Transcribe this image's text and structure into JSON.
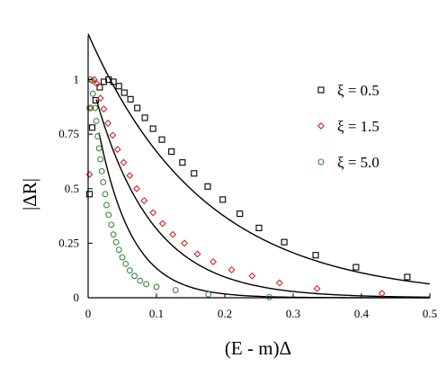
{
  "chart_data": {
    "type": "scatter",
    "title": "",
    "xlabel": "(E - m)Δ",
    "ylabel": "|ΔR|",
    "xlim": [
      0,
      0.5
    ],
    "ylim": [
      0,
      1.2
    ],
    "xticks": [
      0,
      0.1,
      0.2,
      0.3,
      0.4,
      0.5
    ],
    "xtick_labels": [
      "0",
      "0.1",
      "0.2",
      "0.3",
      "0.4",
      "0.5"
    ],
    "yticks": [
      0,
      0.25,
      0.5,
      0.75,
      1
    ],
    "ytick_labels": [
      "0",
      "0.25",
      "0.5",
      "0.75",
      "1"
    ],
    "grid": false,
    "legend_position": "top-right",
    "series": [
      {
        "name": "ξ = 0.5",
        "marker": "square",
        "color": "#000000",
        "points": [
          [
            0.002,
            0.475
          ],
          [
            0.006,
            0.78
          ],
          [
            0.011,
            0.905
          ],
          [
            0.017,
            0.965
          ],
          [
            0.023,
            0.99
          ],
          [
            0.03,
            1.0
          ],
          [
            0.037,
            0.99
          ],
          [
            0.045,
            0.97
          ],
          [
            0.053,
            0.94
          ],
          [
            0.062,
            0.91
          ],
          [
            0.072,
            0.87
          ],
          [
            0.083,
            0.825
          ],
          [
            0.095,
            0.775
          ],
          [
            0.108,
            0.725
          ],
          [
            0.122,
            0.67
          ],
          [
            0.138,
            0.62
          ],
          [
            0.155,
            0.57
          ],
          [
            0.175,
            0.51
          ],
          [
            0.197,
            0.45
          ],
          [
            0.222,
            0.385
          ],
          [
            0.25,
            0.32
          ],
          [
            0.287,
            0.255
          ],
          [
            0.333,
            0.195
          ],
          [
            0.392,
            0.14
          ],
          [
            0.467,
            0.095
          ]
        ]
      },
      {
        "name": "ξ = 1.5",
        "marker": "diamond",
        "color": "#d62728",
        "points": [
          [
            0.002,
            0.565
          ],
          [
            0.004,
            0.87
          ],
          [
            0.006,
            0.995
          ],
          [
            0.009,
            1.0
          ],
          [
            0.013,
            0.98
          ],
          [
            0.018,
            0.915
          ],
          [
            0.023,
            0.865
          ],
          [
            0.029,
            0.8
          ],
          [
            0.036,
            0.745
          ],
          [
            0.043,
            0.68
          ],
          [
            0.052,
            0.62
          ],
          [
            0.061,
            0.56
          ],
          [
            0.071,
            0.5
          ],
          [
            0.082,
            0.445
          ],
          [
            0.095,
            0.39
          ],
          [
            0.109,
            0.34
          ],
          [
            0.124,
            0.29
          ],
          [
            0.141,
            0.25
          ],
          [
            0.16,
            0.2
          ],
          [
            0.183,
            0.165
          ],
          [
            0.21,
            0.128
          ],
          [
            0.24,
            0.1
          ],
          [
            0.28,
            0.068
          ],
          [
            0.335,
            0.042
          ],
          [
            0.43,
            0.02
          ]
        ]
      },
      {
        "name": "ξ = 5.0",
        "marker": "circle",
        "color": "#3d8b3d",
        "points": [
          [
            0.002,
            0.87
          ],
          [
            0.004,
            1.0
          ],
          [
            0.007,
            0.935
          ],
          [
            0.01,
            0.87
          ],
          [
            0.012,
            0.81
          ],
          [
            0.014,
            0.74
          ],
          [
            0.016,
            0.685
          ],
          [
            0.018,
            0.635
          ],
          [
            0.02,
            0.58
          ],
          [
            0.022,
            0.53
          ],
          [
            0.025,
            0.475
          ],
          [
            0.027,
            0.425
          ],
          [
            0.03,
            0.38
          ],
          [
            0.034,
            0.335
          ],
          [
            0.037,
            0.29
          ],
          [
            0.041,
            0.255
          ],
          [
            0.045,
            0.22
          ],
          [
            0.05,
            0.185
          ],
          [
            0.055,
            0.155
          ],
          [
            0.061,
            0.125
          ],
          [
            0.068,
            0.1
          ],
          [
            0.076,
            0.078
          ],
          [
            0.085,
            0.062
          ],
          [
            0.1,
            0.05
          ],
          [
            0.128,
            0.035
          ],
          [
            0.176,
            0.015
          ],
          [
            0.265,
            0.003
          ]
        ]
      }
    ],
    "fit_curves": [
      {
        "A": 1.21,
        "k": 5.9,
        "x_start": 0.0
      },
      {
        "A": 1.05,
        "k": 12.0,
        "x_start": 0.012
      },
      {
        "A": 1.05,
        "k": 20.5,
        "x_start": 0.016
      }
    ]
  }
}
